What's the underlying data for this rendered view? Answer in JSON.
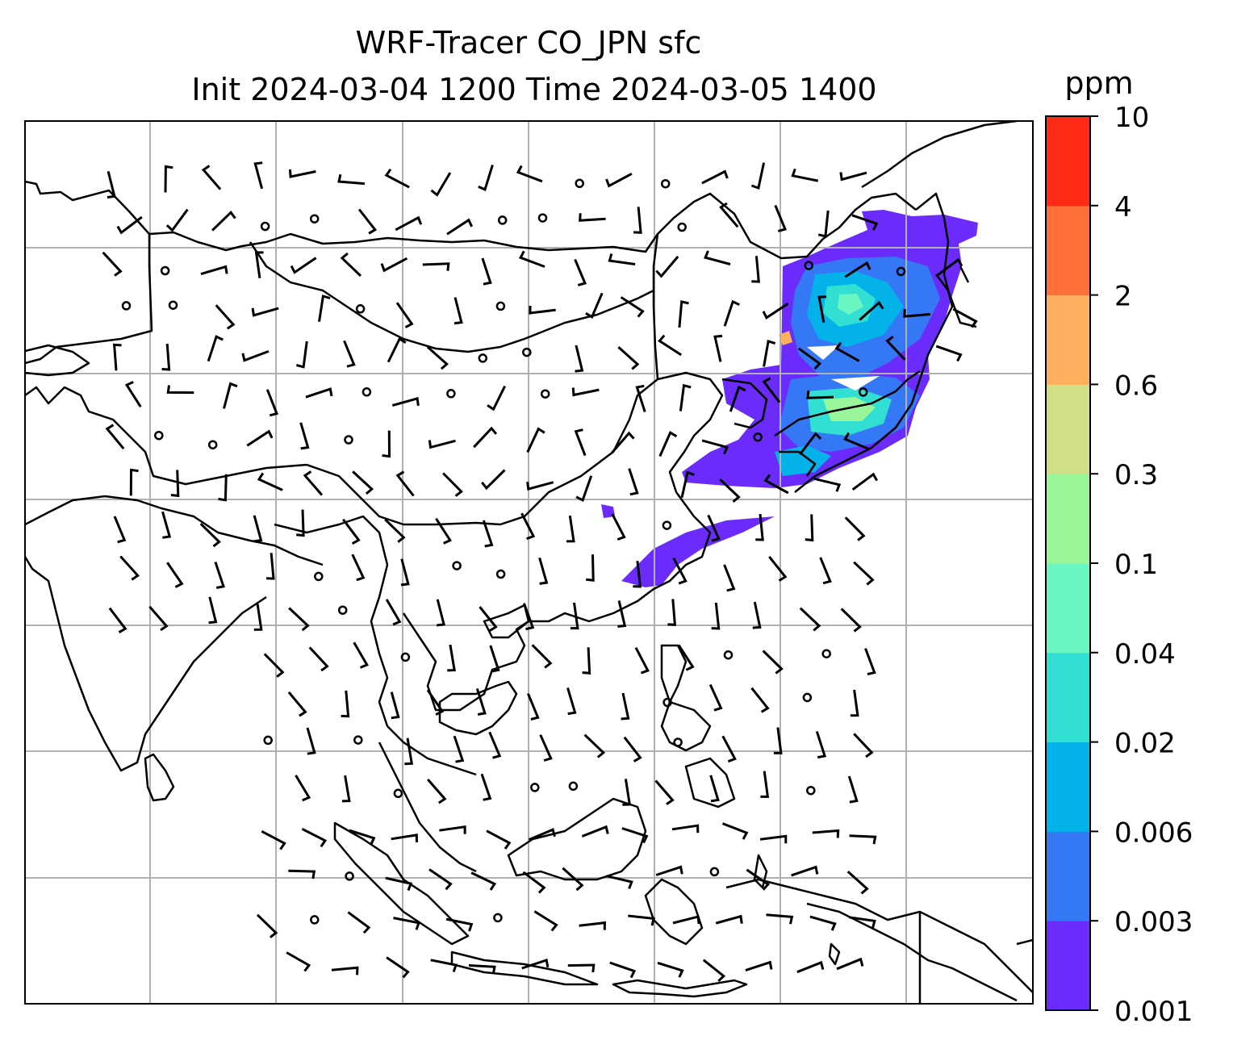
{
  "title": {
    "line1": "WRF-Tracer CO_JPN sfc",
    "line2": "Init 2024-03-04 1200 Time 2024-03-05 1400"
  },
  "colorbar": {
    "unit": "ppm",
    "levels": [
      "0.001",
      "0.003",
      "0.006",
      "0.02",
      "0.04",
      "0.1",
      "0.3",
      "0.6",
      "2",
      "4",
      "10"
    ],
    "colors": [
      "#6a2bfb",
      "#3478f6",
      "#04b2ea",
      "#32dfd3",
      "#6af6c0",
      "#9af799",
      "#d0e084",
      "#ffb05f",
      "#ff6f3a",
      "#ff2b16"
    ]
  },
  "map": {
    "gridlines": true,
    "grid_color": "#b0b0b0",
    "coastline_color": "#000000",
    "wind_barb_color": "#000000",
    "plume_regions": [
      {
        "region": "northeast China / Korea / Japan",
        "peak_level": "0.6"
      },
      {
        "region": "Taiwan Strait",
        "peak_level": "0.003"
      }
    ]
  }
}
